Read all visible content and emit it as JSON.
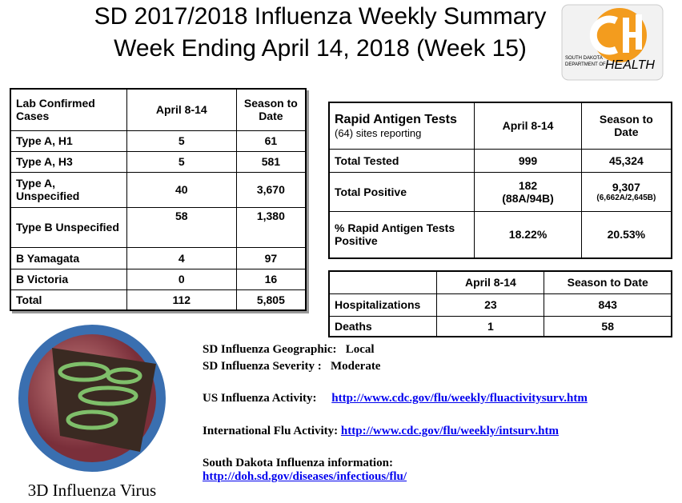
{
  "header": {
    "title_line1": "SD 2017/2018 Influenza Weekly Summary",
    "title_line2": "Week Ending April 14, 2018 (Week 15)"
  },
  "logo": {
    "line1": "SOUTH DAKOTA",
    "line2": "DEPARTMENT OF",
    "line3": "HEALTH"
  },
  "lab_table": {
    "rows": [
      [
        [
          "Lab Confirmed Cases"
        ],
        [
          "April 8-14"
        ],
        [
          "Season to Date"
        ]
      ],
      [
        [
          "Type A, H1"
        ],
        [
          "5"
        ],
        [
          "61"
        ]
      ],
      [
        [
          "Type A, H3"
        ],
        [
          "5"
        ],
        [
          "581"
        ]
      ],
      [
        [
          "Type A, Unspecified"
        ],
        [
          "40"
        ],
        [
          "3,670"
        ]
      ],
      [
        [
          "Type B Unspecified"
        ],
        [
          "58"
        ],
        [
          "1,380"
        ]
      ],
      [
        [
          "B Yamagata"
        ],
        [
          "4"
        ],
        [
          "97"
        ]
      ],
      [
        [
          "B Victoria"
        ],
        [
          "0"
        ],
        [
          "16"
        ]
      ],
      [
        [
          "Total"
        ],
        [
          "112"
        ],
        [
          "5,805"
        ]
      ]
    ]
  },
  "rapid_table": {
    "rows": [
      [
        [
          "Rapid Antigen Tests",
          "(64) sites reporting"
        ],
        [
          "April 8-14"
        ],
        [
          "Season to Date"
        ]
      ],
      [
        [
          "Total Tested"
        ],
        [
          "999"
        ],
        [
          "45,324"
        ]
      ],
      [
        [
          "Total Positive"
        ],
        [
          "182",
          "(88A/94B)"
        ],
        [
          "9,307",
          "(6,662A/2,645B)"
        ]
      ],
      [
        [
          "% Rapid Antigen Tests Positive"
        ],
        [
          "18.22%"
        ],
        [
          "20.53%"
        ]
      ]
    ]
  },
  "hosp_table": {
    "rows": [
      [
        [
          ""
        ],
        [
          "April 8-14"
        ],
        [
          "Season to Date"
        ]
      ],
      [
        [
          "Hospitalizations"
        ],
        [
          "23"
        ],
        [
          "843"
        ]
      ],
      [
        [
          "Deaths"
        ],
        [
          "1"
        ],
        [
          "58"
        ]
      ]
    ]
  },
  "info": [
    {
      "label": "SD Influenza Geographic:",
      "value": "Local"
    },
    {
      "label": "SD Influenza Severity :",
      "value": "Moderate"
    },
    {
      "label": "US Influenza Activity:",
      "link": "http://www.cdc.gov/flu/weekly/fluactivitysurv.htm"
    },
    {
      "label": "International Flu Activity:",
      "link": "http://www.cdc.gov/flu/weekly/intsurv.htm"
    },
    {
      "label": "South Dakota Influenza information:",
      "link": "http://doh.sd.gov/diseases/infectious/flu/"
    }
  ],
  "image_caption": "3D Influenza Virus"
}
